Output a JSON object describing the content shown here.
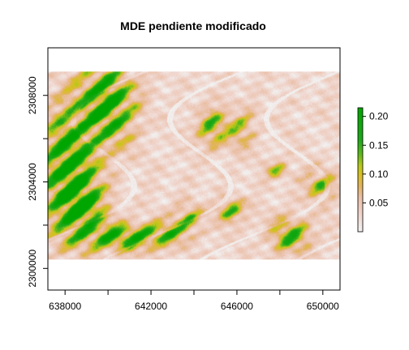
{
  "chart_data": {
    "type": "heatmap",
    "title": "MDE pendiente modificado",
    "xlabel": "",
    "ylabel": "",
    "xlim": [
      637200,
      650800
    ],
    "ylim": [
      2299000,
      2310200
    ],
    "raster_extent": {
      "x": [
        637200,
        650800
      ],
      "y": [
        2300400,
        2309100
      ]
    },
    "x_ticks": [
      {
        "value": 638000,
        "label": "638000"
      },
      {
        "value": 640000,
        "label": ""
      },
      {
        "value": 642000,
        "label": "642000"
      },
      {
        "value": 644000,
        "label": ""
      },
      {
        "value": 646000,
        "label": "646000"
      },
      {
        "value": 648000,
        "label": ""
      },
      {
        "value": 650000,
        "label": "650000"
      }
    ],
    "y_ticks": [
      {
        "value": 2300000,
        "label": "2300000"
      },
      {
        "value": 2302000,
        "label": ""
      },
      {
        "value": 2304000,
        "label": "2304000"
      },
      {
        "value": 2306000,
        "label": ""
      },
      {
        "value": 2308000,
        "label": "2308000"
      }
    ],
    "legend": {
      "placement": "right",
      "range": [
        0,
        0.215
      ],
      "ticks": [
        {
          "value": 0.05,
          "label": "0.05"
        },
        {
          "value": 0.1,
          "label": "0.10"
        },
        {
          "value": 0.15,
          "label": "0.15"
        },
        {
          "value": 0.2,
          "label": "0.20"
        }
      ]
    },
    "color_scale": [
      {
        "value": 0.0,
        "color": "#f2f2f2"
      },
      {
        "value": 0.03,
        "color": "#f0d5cc"
      },
      {
        "value": 0.06,
        "color": "#eabfa7"
      },
      {
        "value": 0.08,
        "color": "#e2b35e"
      },
      {
        "value": 0.1,
        "color": "#d8c020"
      },
      {
        "value": 0.115,
        "color": "#b8c81c"
      },
      {
        "value": 0.135,
        "color": "#5fb81c"
      },
      {
        "value": 0.16,
        "color": "#1ea81c"
      },
      {
        "value": 0.215,
        "color": "#00a600"
      }
    ],
    "grid": false
  }
}
